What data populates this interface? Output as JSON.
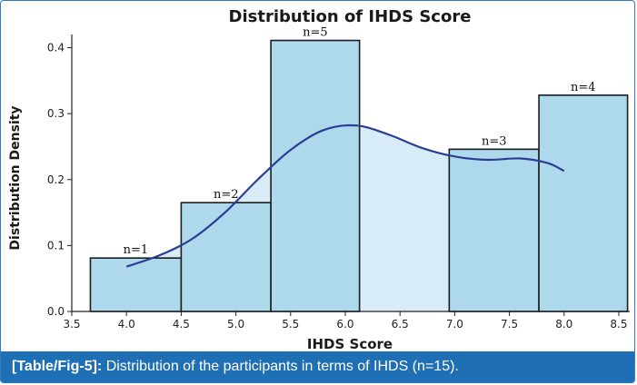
{
  "chart_data": {
    "type": "bar",
    "subtype": "histogram-with-density-curve",
    "title": "Distribution of IHDS Score",
    "xlabel": "IHDS Score",
    "ylabel": "Distribution Density",
    "xlim": [
      3.5,
      8.6
    ],
    "ylim": [
      0.0,
      0.42
    ],
    "x_ticks": [
      "3.5",
      "4.0",
      "4.5",
      "5.0",
      "5.5",
      "6.0",
      "6.5",
      "7.0",
      "7.5",
      "8.0",
      "8.5"
    ],
    "y_ticks": [
      "0.0",
      "0.1",
      "0.2",
      "0.3",
      "0.4"
    ],
    "bins": [
      {
        "x0": 3.67,
        "x1": 4.5,
        "density": 0.081,
        "label": "n=1"
      },
      {
        "x0": 4.5,
        "x1": 5.32,
        "density": 0.165,
        "label": "n=2"
      },
      {
        "x0": 5.32,
        "x1": 6.13,
        "density": 0.411,
        "label": "n=5"
      },
      {
        "x0": 6.13,
        "x1": 6.95,
        "density": 0.0,
        "label": ""
      },
      {
        "x0": 6.95,
        "x1": 7.77,
        "density": 0.246,
        "label": "n=3"
      },
      {
        "x0": 7.77,
        "x1": 8.58,
        "density": 0.328,
        "label": "n=4"
      }
    ],
    "density_curve": {
      "x": [
        4.0,
        4.3,
        4.6,
        4.9,
        5.2,
        5.5,
        5.8,
        6.1,
        6.4,
        6.7,
        7.0,
        7.3,
        7.6,
        7.85,
        8.0
      ],
      "y": [
        0.068,
        0.085,
        0.11,
        0.15,
        0.2,
        0.245,
        0.275,
        0.282,
        0.268,
        0.248,
        0.235,
        0.23,
        0.232,
        0.225,
        0.213
      ]
    },
    "colors": {
      "bar_fill": "#aed8ec",
      "bar_edge": "#1c1c1c",
      "curve": "#2a3f93",
      "area_fill": "#d8ecf7"
    },
    "grid": false
  },
  "caption": {
    "ref": "[Table/Fig-5]:",
    "text": " Distribution of the participants in terms of IHDS (n=15)."
  }
}
